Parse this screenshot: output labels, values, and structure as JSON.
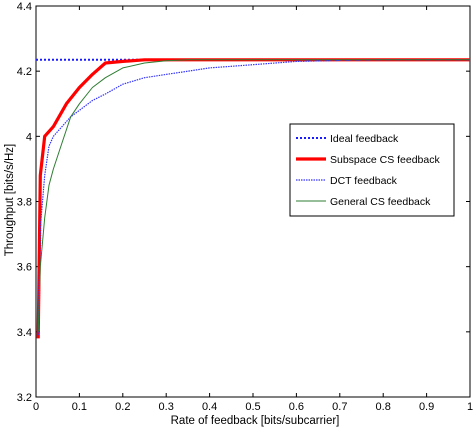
{
  "chart_data": {
    "type": "line",
    "title": "",
    "xlabel": "Rate of feedback [bits/subcarrier]",
    "ylabel": "Throughput [bits/s/Hz]",
    "xlim": [
      0,
      1
    ],
    "ylim": [
      3.2,
      4.4
    ],
    "x_ticks": [
      "0",
      "0.1",
      "0.2",
      "0.3",
      "0.4",
      "0.5",
      "0.6",
      "0.7",
      "0.8",
      "0.9",
      "1"
    ],
    "y_ticks": [
      "3.2",
      "3.4",
      "3.6",
      "3.8",
      "4",
      "4.2",
      "4.4"
    ],
    "grid": false,
    "legend_position": "right",
    "series": [
      {
        "name": "Ideal feedback",
        "color": "#1a1aff",
        "style": "dotted",
        "x": [
          0,
          1
        ],
        "y": [
          4.235,
          4.235
        ]
      },
      {
        "name": "Subspace CS feedback",
        "color": "#ff0000",
        "style": "solid-thick",
        "x": [
          0.005,
          0.01,
          0.02,
          0.04,
          0.07,
          0.1,
          0.13,
          0.16,
          0.2,
          0.25,
          0.28,
          0.3,
          0.4,
          0.5,
          0.6,
          0.7,
          0.8,
          0.9,
          1
        ],
        "y": [
          3.38,
          3.88,
          4.0,
          4.03,
          4.1,
          4.15,
          4.19,
          4.225,
          4.23,
          4.235,
          4.235,
          4.235,
          4.235,
          4.235,
          4.235,
          4.235,
          4.235,
          4.235,
          4.235
        ]
      },
      {
        "name": "DCT feedback",
        "color": "#3333ff",
        "style": "dotted-solid",
        "x": [
          0.005,
          0.01,
          0.02,
          0.03,
          0.04,
          0.06,
          0.08,
          0.1,
          0.13,
          0.16,
          0.2,
          0.25,
          0.3,
          0.35,
          0.4,
          0.5,
          0.6,
          0.7,
          0.8,
          0.9,
          1
        ],
        "y": [
          3.39,
          3.72,
          3.88,
          3.97,
          4.0,
          4.03,
          4.06,
          4.08,
          4.11,
          4.13,
          4.16,
          4.18,
          4.19,
          4.2,
          4.21,
          4.22,
          4.23,
          4.233,
          4.235,
          4.235,
          4.235
        ]
      },
      {
        "name": "General CS feedback",
        "color": "#2e7d32",
        "style": "solid",
        "x": [
          0.005,
          0.01,
          0.02,
          0.03,
          0.04,
          0.06,
          0.08,
          0.1,
          0.13,
          0.16,
          0.2,
          0.25,
          0.3,
          0.35,
          0.4,
          0.5,
          0.6,
          0.7,
          0.8,
          0.9,
          1
        ],
        "y": [
          3.4,
          3.6,
          3.75,
          3.85,
          3.9,
          3.98,
          4.06,
          4.1,
          4.15,
          4.18,
          4.21,
          4.225,
          4.232,
          4.235,
          4.235,
          4.235,
          4.235,
          4.235,
          4.235,
          4.235,
          4.235
        ]
      }
    ]
  }
}
